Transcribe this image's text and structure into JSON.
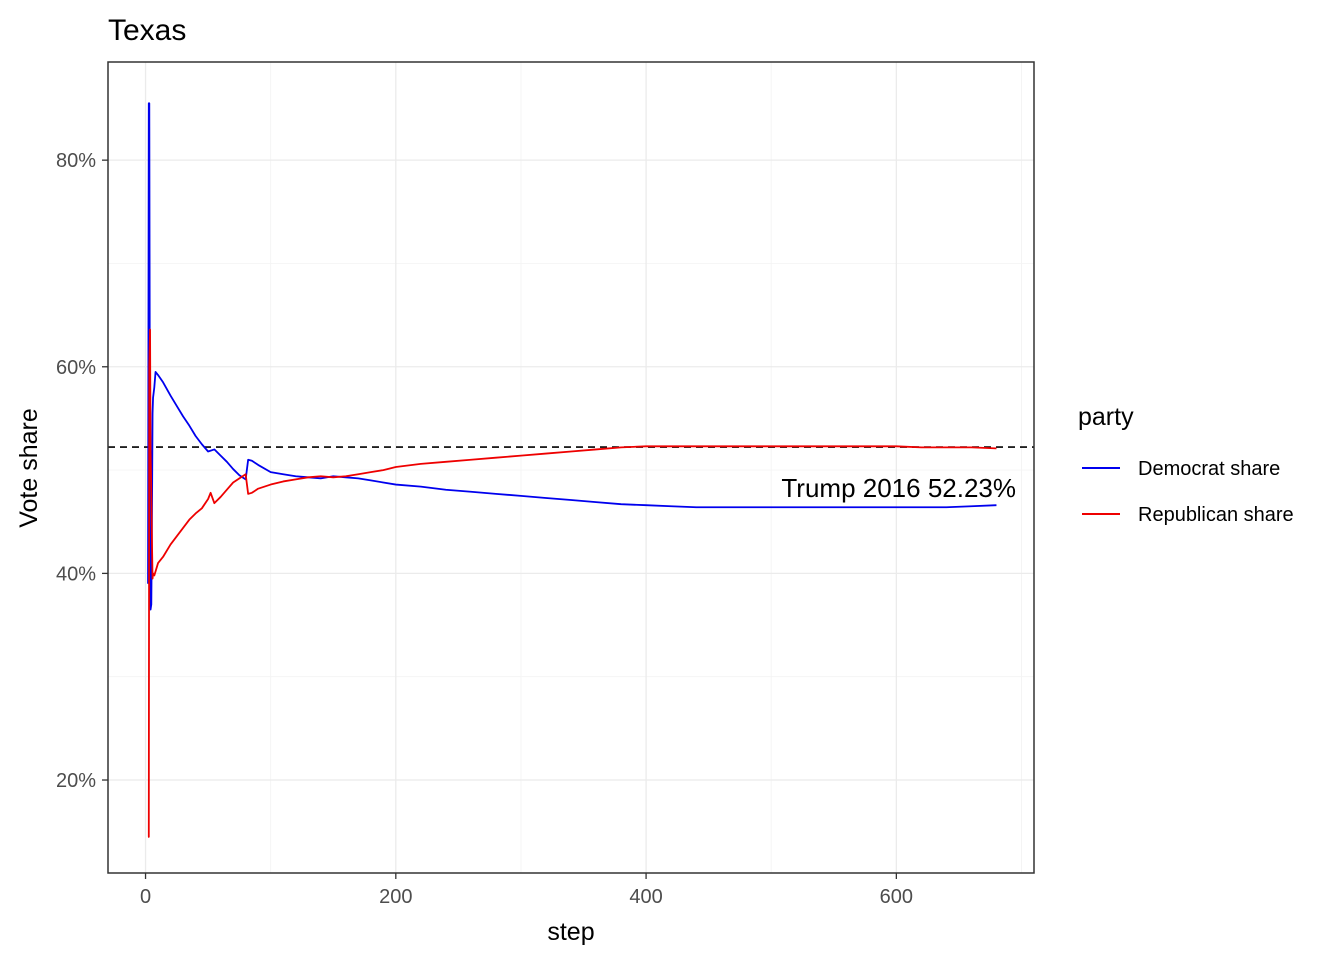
{
  "chart_data": {
    "type": "line",
    "title": "Texas",
    "xlabel": "step",
    "ylabel": "Vote share",
    "xlim": [
      -30,
      710
    ],
    "ylim": [
      0.11,
      0.895
    ],
    "x_ticks": [
      0,
      200,
      400,
      600
    ],
    "x_tick_labels": [
      "0",
      "200",
      "400",
      "600"
    ],
    "x_minor_ticks": [
      100,
      300,
      500,
      700
    ],
    "y_ticks": [
      0.2,
      0.4,
      0.6,
      0.8
    ],
    "y_tick_labels": [
      "20%",
      "40%",
      "60%",
      "80%"
    ],
    "y_minor_ticks": [
      0.3,
      0.5,
      0.7
    ],
    "grid": true,
    "legend": {
      "title": "party",
      "position": "right"
    },
    "reference_line": {
      "y": 0.5223,
      "style": "dashed",
      "label": "Trump 2016 52.23%"
    },
    "series": [
      {
        "name": "Democrat share",
        "color": "#0000ee",
        "x": [
          2,
          2.6,
          3,
          3.6,
          4,
          4.6,
          5,
          5.6,
          6,
          7,
          8,
          10,
          14,
          20,
          25,
          30,
          35,
          40,
          45,
          50,
          55,
          60,
          65,
          70,
          75,
          80,
          82,
          85,
          90,
          100,
          110,
          120,
          130,
          140,
          150,
          160,
          170,
          180,
          190,
          200,
          220,
          240,
          260,
          280,
          300,
          320,
          340,
          360,
          380,
          400,
          420,
          440,
          460,
          480,
          500,
          520,
          540,
          560,
          580,
          600,
          620,
          640,
          660,
          680
        ],
        "y": [
          0.39,
          0.855,
          0.855,
          0.45,
          0.365,
          0.37,
          0.43,
          0.555,
          0.57,
          0.58,
          0.595,
          0.592,
          0.585,
          0.572,
          0.562,
          0.552,
          0.543,
          0.533,
          0.525,
          0.518,
          0.52,
          0.514,
          0.508,
          0.501,
          0.495,
          0.491,
          0.51,
          0.509,
          0.505,
          0.498,
          0.496,
          0.494,
          0.493,
          0.492,
          0.494,
          0.493,
          0.492,
          0.49,
          0.488,
          0.486,
          0.484,
          0.481,
          0.479,
          0.477,
          0.475,
          0.473,
          0.471,
          0.469,
          0.467,
          0.466,
          0.465,
          0.464,
          0.464,
          0.464,
          0.464,
          0.464,
          0.464,
          0.464,
          0.464,
          0.464,
          0.464,
          0.464,
          0.465,
          0.466
        ]
      },
      {
        "name": "Republican share",
        "color": "#ee0000",
        "x": [
          2,
          2.6,
          3,
          3.6,
          4,
          4.6,
          5,
          5.6,
          6,
          7,
          8,
          10,
          14,
          20,
          25,
          30,
          35,
          40,
          45,
          50,
          52,
          55,
          60,
          65,
          70,
          75,
          80,
          82,
          85,
          90,
          100,
          110,
          120,
          130,
          140,
          150,
          160,
          170,
          180,
          190,
          200,
          220,
          240,
          260,
          280,
          300,
          320,
          340,
          360,
          380,
          400,
          420,
          440,
          460,
          480,
          500,
          520,
          540,
          560,
          580,
          600,
          620,
          640,
          660,
          680
        ],
        "y": [
          0.145,
          0.145,
          0.6,
          0.636,
          0.52,
          0.48,
          0.44,
          0.395,
          0.4,
          0.398,
          0.402,
          0.41,
          0.416,
          0.428,
          0.436,
          0.444,
          0.452,
          0.458,
          0.463,
          0.472,
          0.478,
          0.468,
          0.474,
          0.481,
          0.488,
          0.492,
          0.496,
          0.477,
          0.478,
          0.482,
          0.486,
          0.489,
          0.491,
          0.493,
          0.494,
          0.493,
          0.494,
          0.496,
          0.498,
          0.5,
          0.503,
          0.506,
          0.508,
          0.51,
          0.512,
          0.514,
          0.516,
          0.518,
          0.52,
          0.522,
          0.523,
          0.523,
          0.523,
          0.523,
          0.523,
          0.523,
          0.523,
          0.523,
          0.523,
          0.523,
          0.523,
          0.522,
          0.522,
          0.522,
          0.521
        ]
      }
    ]
  }
}
